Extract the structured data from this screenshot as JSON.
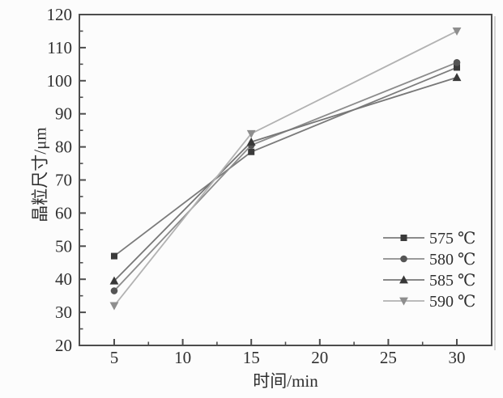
{
  "figure": {
    "background": "#fcfcfc",
    "scan_edge_color": "#c9c9c9"
  },
  "chart_data": {
    "type": "line",
    "title": "",
    "xlabel": "时间/min",
    "ylabel": "晶粒尺寸/μm",
    "x": [
      5,
      15,
      30
    ],
    "series": [
      {
        "name": "575 ℃",
        "marker": "square",
        "values": [
          47,
          78.5,
          104
        ],
        "line_color": "#7b7b7b",
        "marker_color": "#3a3a3a"
      },
      {
        "name": "580 ℃",
        "marker": "circle",
        "values": [
          36.5,
          80.5,
          105.5
        ],
        "line_color": "#8c8c8c",
        "marker_color": "#555555"
      },
      {
        "name": "585 ℃",
        "marker": "triangle-up",
        "values": [
          39.5,
          81.5,
          101
        ],
        "line_color": "#777777",
        "marker_color": "#383838"
      },
      {
        "name": "590 ℃",
        "marker": "triangle-down",
        "values": [
          32,
          84,
          115
        ],
        "line_color": "#b2b2b2",
        "marker_color": "#8e8e8e"
      }
    ],
    "xlim": [
      2.46,
      32.54
    ],
    "ylim": [
      20,
      120
    ],
    "x_ticks": [
      5,
      10,
      15,
      20,
      25,
      30
    ],
    "x_minor_ticks": [
      7.5,
      12.5,
      17.5,
      22.5,
      27.5
    ],
    "y_ticks": [
      20,
      30,
      40,
      50,
      60,
      70,
      80,
      90,
      100,
      110,
      120
    ],
    "y_minor_ticks": [
      25,
      35,
      45,
      55,
      65,
      75,
      85,
      95,
      105,
      115
    ],
    "grid": false,
    "legend_position": "inside-right-middle",
    "axis_color": "#4d4d4d",
    "text_color": "#2f2f2f"
  }
}
